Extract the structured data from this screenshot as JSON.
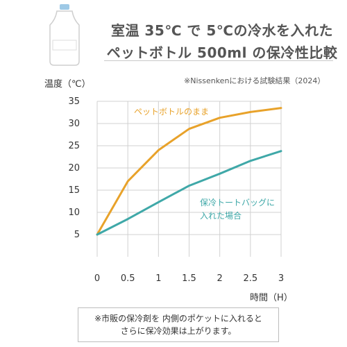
{
  "header": {
    "title_line1": "室温 35℃ で 5℃の冷水を入れた",
    "title_line2": "ペットボトル 500ml の保冷性比較"
  },
  "source": "※Nissenkenにおける試験結果（2024）",
  "note": {
    "line1": "※市販の保冷剤を 内側のポケットに入れると",
    "line2": "さらに保冷効果は上がります。"
  },
  "colors": {
    "orange": "#e8a22a",
    "teal": "#3fa8a8",
    "grid": "#d0d0d0"
  },
  "chart_data": {
    "type": "line",
    "xlabel": "時間（H）",
    "ylabel": "温度（℃）",
    "x": [
      0,
      0.5,
      1,
      1.5,
      2,
      2.5,
      3
    ],
    "xticks": [
      "0",
      "0.5",
      "1",
      "1.5",
      "2",
      "2.5",
      "3"
    ],
    "yticks": [
      "5",
      "10",
      "15",
      "20",
      "25",
      "30",
      "35"
    ],
    "ylim": [
      0,
      35
    ],
    "xlim": [
      0,
      3
    ],
    "grid": true,
    "series": [
      {
        "name": "ペットボトルのまま",
        "label_lines": [
          "ペットボトルのまま"
        ],
        "color": "#e8a22a",
        "values": [
          5,
          17,
          24,
          28.8,
          31.3,
          32.6,
          33.5
        ]
      },
      {
        "name": "保冷トートバッグに入れた場合",
        "label_lines": [
          "保冷トートバッグに",
          "入れた場合"
        ],
        "color": "#3fa8a8",
        "values": [
          5,
          8.5,
          12.3,
          16,
          18.7,
          21.6,
          23.8
        ]
      }
    ]
  }
}
